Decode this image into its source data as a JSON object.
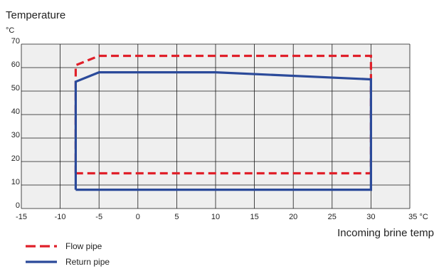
{
  "chart_data": {
    "type": "line",
    "title": "Temperature",
    "ylabel_unit": "°C",
    "xlabel": "Incoming brine temp",
    "x_unit": "°C",
    "xlim": [
      -15,
      35
    ],
    "ylim": [
      0,
      70
    ],
    "x_ticks": [
      -15,
      -10,
      -5,
      0,
      5,
      10,
      15,
      20,
      25,
      30,
      35
    ],
    "y_ticks": [
      0,
      10,
      20,
      30,
      40,
      50,
      60,
      70
    ],
    "grid": true,
    "legend_position": "bottom-left",
    "series": [
      {
        "name": "Flow pipe",
        "style": "dashed",
        "color": "#e0202a",
        "x": [
          -8,
          -8,
          -5,
          30,
          30,
          -8
        ],
        "y": [
          15,
          61,
          65,
          65,
          15,
          15
        ]
      },
      {
        "name": "Return pipe",
        "style": "solid",
        "color": "#2b4a9a",
        "x": [
          -8,
          -8,
          -5,
          10,
          30,
          30,
          -8
        ],
        "y": [
          8,
          54,
          58,
          58,
          55,
          8,
          8
        ]
      }
    ]
  }
}
